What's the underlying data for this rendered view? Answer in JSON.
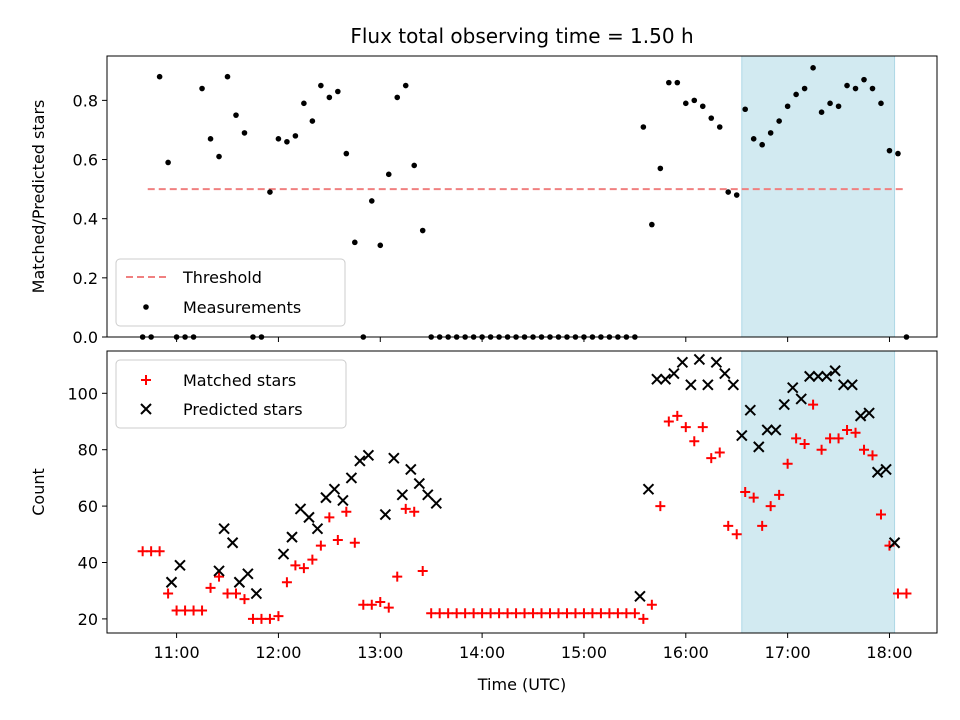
{
  "title": "Flux total observing time = 1.50 h",
  "colors": {
    "matched": "#ff0000",
    "predicted": "#000000",
    "measurements": "#000000",
    "threshold": "#f08080",
    "highlight": "#add8e6"
  },
  "chart_data": [
    {
      "panel": "top",
      "type": "scatter",
      "title": "Flux total observing time = 1.50 h",
      "ylabel": "Matched/Predicted stars",
      "xlabel": "",
      "xlim": [
        "10:19",
        "18:28"
      ],
      "ylim": [
        0,
        0.95
      ],
      "yticks": [
        "0.0",
        "0.2",
        "0.4",
        "0.6",
        "0.8"
      ],
      "grid": false,
      "highlight_span": [
        "16:33",
        "18:03"
      ],
      "threshold": {
        "name": "Threshold",
        "y": 0.5,
        "x": [
          "10:43",
          "18:09"
        ],
        "style": "dashed"
      },
      "legend": {
        "placement": "lower-left",
        "entries": [
          "Threshold",
          "Measurements"
        ]
      },
      "series": [
        {
          "name": "Measurements",
          "marker": "dot",
          "x": [
            "10:40",
            "10:45",
            "10:50",
            "10:55",
            "11:00",
            "11:05",
            "11:10",
            "11:15",
            "11:20",
            "11:25",
            "11:30",
            "11:35",
            "11:40",
            "11:45",
            "11:50",
            "11:55",
            "12:00",
            "12:05",
            "12:10",
            "12:15",
            "12:20",
            "12:25",
            "12:30",
            "12:35",
            "12:40",
            "12:45",
            "12:50",
            "12:55",
            "13:00",
            "13:05",
            "13:10",
            "13:15",
            "13:20",
            "13:25",
            "13:30",
            "13:35",
            "13:40",
            "13:45",
            "13:50",
            "13:55",
            "14:00",
            "14:05",
            "14:10",
            "14:15",
            "14:20",
            "14:25",
            "14:30",
            "14:35",
            "14:40",
            "14:45",
            "14:50",
            "14:55",
            "15:00",
            "15:05",
            "15:10",
            "15:15",
            "15:20",
            "15:25",
            "15:30",
            "15:35",
            "15:40",
            "15:45",
            "15:50",
            "15:55",
            "16:00",
            "16:05",
            "16:10",
            "16:15",
            "16:20",
            "16:25",
            "16:30",
            "16:35",
            "16:40",
            "16:45",
            "16:50",
            "16:55",
            "17:00",
            "17:05",
            "17:10",
            "17:15",
            "17:20",
            "17:25",
            "17:30",
            "17:35",
            "17:40",
            "17:45",
            "17:50",
            "17:55",
            "18:00",
            "18:05",
            "18:10"
          ],
          "y": [
            0,
            0,
            0.88,
            0.59,
            0,
            0,
            0,
            0.84,
            0.67,
            0.61,
            0.88,
            0.75,
            0.69,
            0,
            0,
            0.49,
            0.67,
            0.66,
            0.68,
            0.79,
            0.73,
            0.85,
            0.81,
            0.83,
            0.62,
            0.32,
            0,
            0.46,
            0.31,
            0.55,
            0.81,
            0.85,
            0.58,
            0.36,
            0,
            0,
            0,
            0,
            0,
            0,
            0,
            0,
            0,
            0,
            0,
            0,
            0,
            0,
            0,
            0,
            0,
            0,
            0,
            0,
            0,
            0,
            0,
            0,
            0,
            0.71,
            0.38,
            0.57,
            0.86,
            0.86,
            0.79,
            0.8,
            0.78,
            0.74,
            0.71,
            0.49,
            0.48,
            0.77,
            0.67,
            0.65,
            0.69,
            0.73,
            0.78,
            0.82,
            0.84,
            0.91,
            0.76,
            0.79,
            0.78,
            0.85,
            0.84,
            0.87,
            0.84,
            0.79,
            0.63,
            0.62,
            0
          ]
        }
      ]
    },
    {
      "panel": "bottom",
      "type": "scatter",
      "xlabel": "Time (UTC)",
      "ylabel": "Count",
      "xlim": [
        "10:19",
        "18:28"
      ],
      "ylim": [
        15,
        115
      ],
      "xticks": [
        "11:00",
        "12:00",
        "13:00",
        "14:00",
        "15:00",
        "16:00",
        "17:00",
        "18:00"
      ],
      "yticks": [
        "20",
        "40",
        "60",
        "80",
        "100"
      ],
      "grid": false,
      "highlight_span": [
        "16:33",
        "18:03"
      ],
      "legend": {
        "placement": "upper-left",
        "entries": [
          "Matched stars",
          "Predicted stars"
        ]
      },
      "series": [
        {
          "name": "Matched stars",
          "marker": "plus",
          "x": [
            "10:40",
            "10:45",
            "10:50",
            "10:55",
            "11:00",
            "11:05",
            "11:10",
            "11:15",
            "11:20",
            "11:25",
            "11:30",
            "11:35",
            "11:40",
            "11:45",
            "11:50",
            "11:55",
            "12:00",
            "12:05",
            "12:10",
            "12:15",
            "12:20",
            "12:25",
            "12:30",
            "12:35",
            "12:40",
            "12:45",
            "12:50",
            "12:55",
            "13:00",
            "13:05",
            "13:10",
            "13:15",
            "13:20",
            "13:25",
            "13:30",
            "13:35",
            "13:40",
            "13:45",
            "13:50",
            "13:55",
            "14:00",
            "14:05",
            "14:10",
            "14:15",
            "14:20",
            "14:25",
            "14:30",
            "14:35",
            "14:40",
            "14:45",
            "14:50",
            "14:55",
            "15:00",
            "15:05",
            "15:10",
            "15:15",
            "15:20",
            "15:25",
            "15:30",
            "15:35",
            "15:40",
            "15:45",
            "15:50",
            "15:55",
            "16:00",
            "16:05",
            "16:10",
            "16:15",
            "16:20",
            "16:25",
            "16:30",
            "16:35",
            "16:40",
            "16:45",
            "16:50",
            "16:55",
            "17:00",
            "17:05",
            "17:10",
            "17:15",
            "17:20",
            "17:25",
            "17:30",
            "17:35",
            "17:40",
            "17:45",
            "17:50",
            "17:55",
            "18:00",
            "18:05",
            "18:10"
          ],
          "y": [
            44,
            44,
            44,
            29,
            23,
            23,
            23,
            23,
            31,
            35,
            29,
            29,
            27,
            20,
            20,
            20,
            21,
            33,
            39,
            38,
            41,
            46,
            56,
            48,
            58,
            47,
            25,
            25,
            26,
            24,
            35,
            59,
            58,
            37,
            22,
            22,
            22,
            22,
            22,
            22,
            22,
            22,
            22,
            22,
            22,
            22,
            22,
            22,
            22,
            22,
            22,
            22,
            22,
            22,
            22,
            22,
            22,
            22,
            22,
            20,
            25,
            60,
            90,
            92,
            88,
            83,
            88,
            77,
            79,
            53,
            50,
            65,
            63,
            53,
            60,
            64,
            75,
            84,
            82,
            96,
            80,
            84,
            84,
            87,
            86,
            80,
            78,
            57,
            46,
            29,
            29
          ]
        },
        {
          "name": "Predicted stars",
          "marker": "cross",
          "x": [
            "10:57",
            "11:02",
            "11:25",
            "11:28",
            "11:33",
            "11:37",
            "11:42",
            "11:47",
            "12:03",
            "12:08",
            "12:13",
            "12:18",
            "12:23",
            "12:28",
            "12:33",
            "12:38",
            "12:43",
            "12:48",
            "12:53",
            "13:03",
            "13:08",
            "13:13",
            "13:18",
            "13:23",
            "13:28",
            "13:33",
            "15:33",
            "15:38",
            "15:43",
            "15:48",
            "15:53",
            "15:58",
            "16:03",
            "16:08",
            "16:13",
            "16:18",
            "16:23",
            "16:28",
            "16:33",
            "16:38",
            "16:43",
            "16:48",
            "16:53",
            "16:58",
            "17:03",
            "17:08",
            "17:13",
            "17:18",
            "17:23",
            "17:28",
            "17:33",
            "17:38",
            "17:43",
            "17:48",
            "17:53",
            "17:58",
            "18:03"
          ],
          "y": [
            33,
            39,
            37,
            52,
            47,
            33,
            36,
            29,
            43,
            49,
            59,
            56,
            52,
            63,
            66,
            62,
            70,
            76,
            78,
            57,
            77,
            64,
            73,
            68,
            64,
            61,
            28,
            66,
            105,
            105,
            107,
            111,
            103,
            112,
            103,
            111,
            107,
            103,
            85,
            94,
            81,
            87,
            87,
            96,
            102,
            98,
            106,
            106,
            106,
            108,
            103,
            103,
            92,
            93,
            72,
            73,
            47
          ]
        }
      ]
    }
  ]
}
